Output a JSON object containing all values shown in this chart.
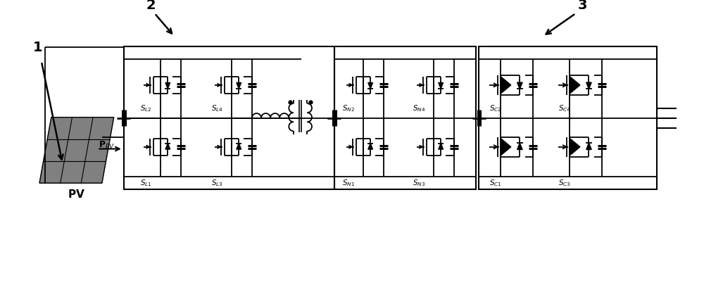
{
  "bg_color": "#ffffff",
  "line_color": "#000000",
  "label1": "1",
  "label2": "2",
  "label3": "3",
  "ppv_label": "$\\mathbf{P}_{PV}$",
  "pv_label": "$\\mathbf{PV}$",
  "SL1": "$\\mathit{S}_{L1}$",
  "SL2": "$\\mathit{S}_{L2}$",
  "SL3": "$\\mathit{S}_{L3}$",
  "SL4": "$\\mathit{S}_{L4}$",
  "SN1": "$\\mathit{S}_{N1}$",
  "SN2": "$\\mathit{S}_{N2}$",
  "SN3": "$\\mathit{S}_{N3}$",
  "SN4": "$\\mathit{S}_{N4}$",
  "SC1": "$\\mathit{S}_{C1}$",
  "SC2": "$\\mathit{S}_{C2}$",
  "SC3": "$\\mathit{S}_{C3}$",
  "SC4": "$\\mathit{S}_{C4}$",
  "figsize": [
    10.0,
    4.06
  ],
  "dpi": 100
}
